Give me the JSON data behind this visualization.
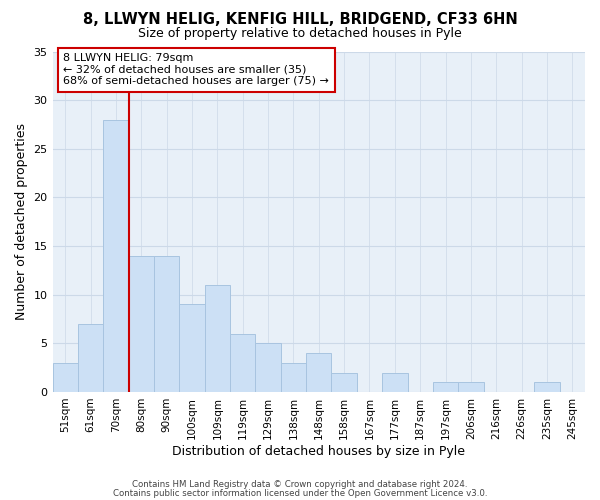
{
  "title": "8, LLWYN HELIG, KENFIG HILL, BRIDGEND, CF33 6HN",
  "subtitle": "Size of property relative to detached houses in Pyle",
  "xlabel": "Distribution of detached houses by size in Pyle",
  "ylabel": "Number of detached properties",
  "bar_color": "#cce0f5",
  "bar_edge_color": "#a8c4e0",
  "bin_labels": [
    "51sqm",
    "61sqm",
    "70sqm",
    "80sqm",
    "90sqm",
    "100sqm",
    "109sqm",
    "119sqm",
    "129sqm",
    "138sqm",
    "148sqm",
    "158sqm",
    "167sqm",
    "177sqm",
    "187sqm",
    "197sqm",
    "206sqm",
    "216sqm",
    "226sqm",
    "235sqm",
    "245sqm"
  ],
  "bar_heights": [
    3,
    7,
    28,
    14,
    14,
    9,
    11,
    6,
    5,
    3,
    4,
    2,
    0,
    2,
    0,
    1,
    1,
    0,
    0,
    1,
    0
  ],
  "ylim": [
    0,
    35
  ],
  "yticks": [
    0,
    5,
    10,
    15,
    20,
    25,
    30,
    35
  ],
  "marker_bin_idx": 3,
  "marker_color": "#cc0000",
  "annotation_text": "8 LLWYN HELIG: 79sqm\n← 32% of detached houses are smaller (35)\n68% of semi-detached houses are larger (75) →",
  "annotation_box_color": "#ffffff",
  "annotation_box_edge": "#cc0000",
  "footer_line1": "Contains HM Land Registry data © Crown copyright and database right 2024.",
  "footer_line2": "Contains public sector information licensed under the Open Government Licence v3.0.",
  "grid_color": "#ccd9e8",
  "background_color": "#e8f0f8"
}
